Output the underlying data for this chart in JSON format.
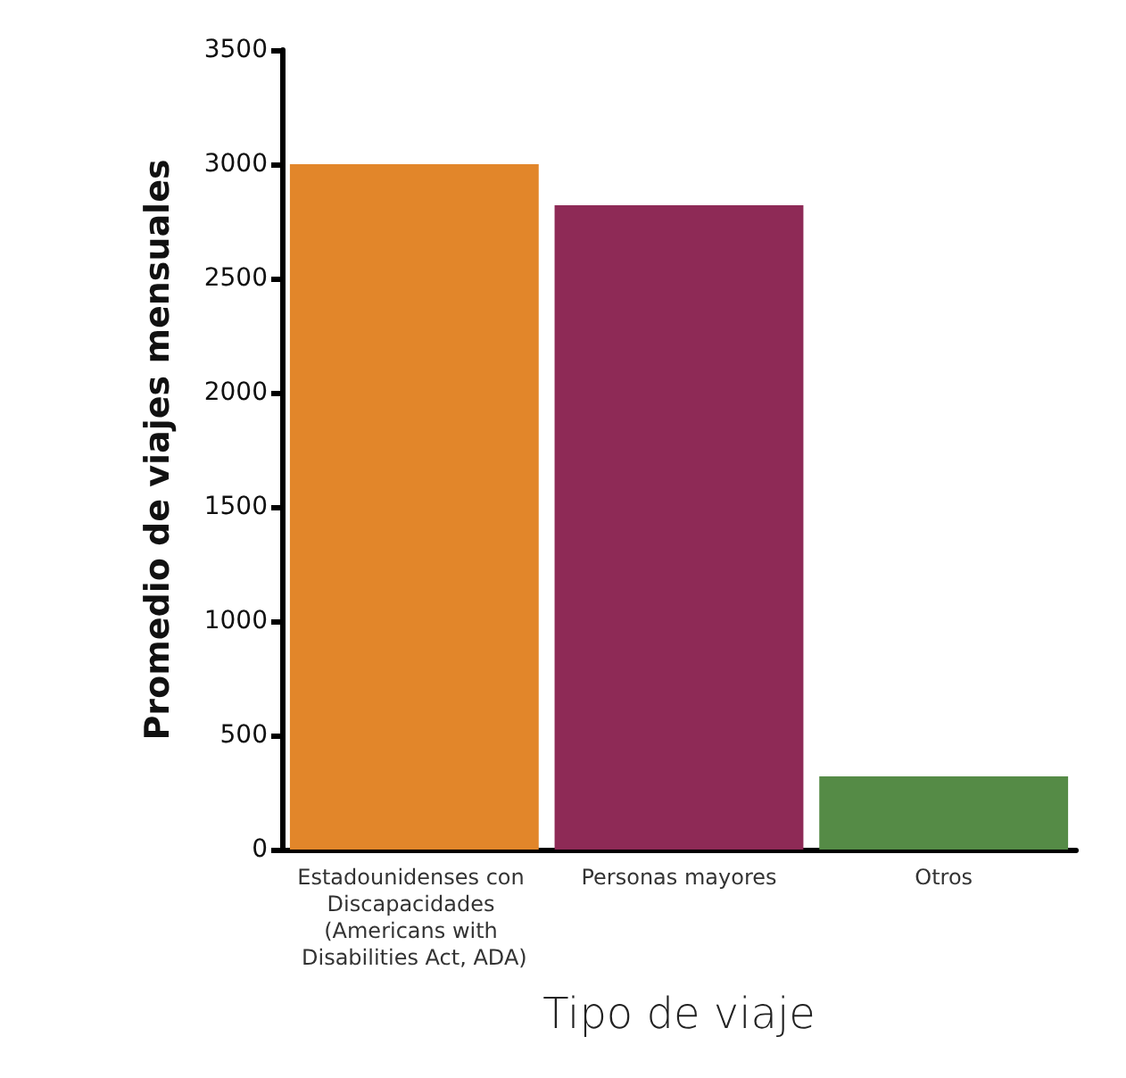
{
  "chart_data": {
    "type": "bar",
    "xlabel": "Tipo de viaje",
    "ylabel": "Promedio de viajes mensuales",
    "categories": [
      "Estadounidenses con Discapacidades (Americans with Disabilities Act, ADA)",
      "Personas mayores",
      "Otros"
    ],
    "values": [
      3000,
      2820,
      320
    ],
    "colors": [
      "#e2862a",
      "#8e2a56",
      "#558b46"
    ],
    "ylim": [
      0,
      3500
    ],
    "yticks": [
      0,
      500,
      1000,
      1500,
      2000,
      2500,
      3000,
      3500
    ],
    "grid": false
  }
}
